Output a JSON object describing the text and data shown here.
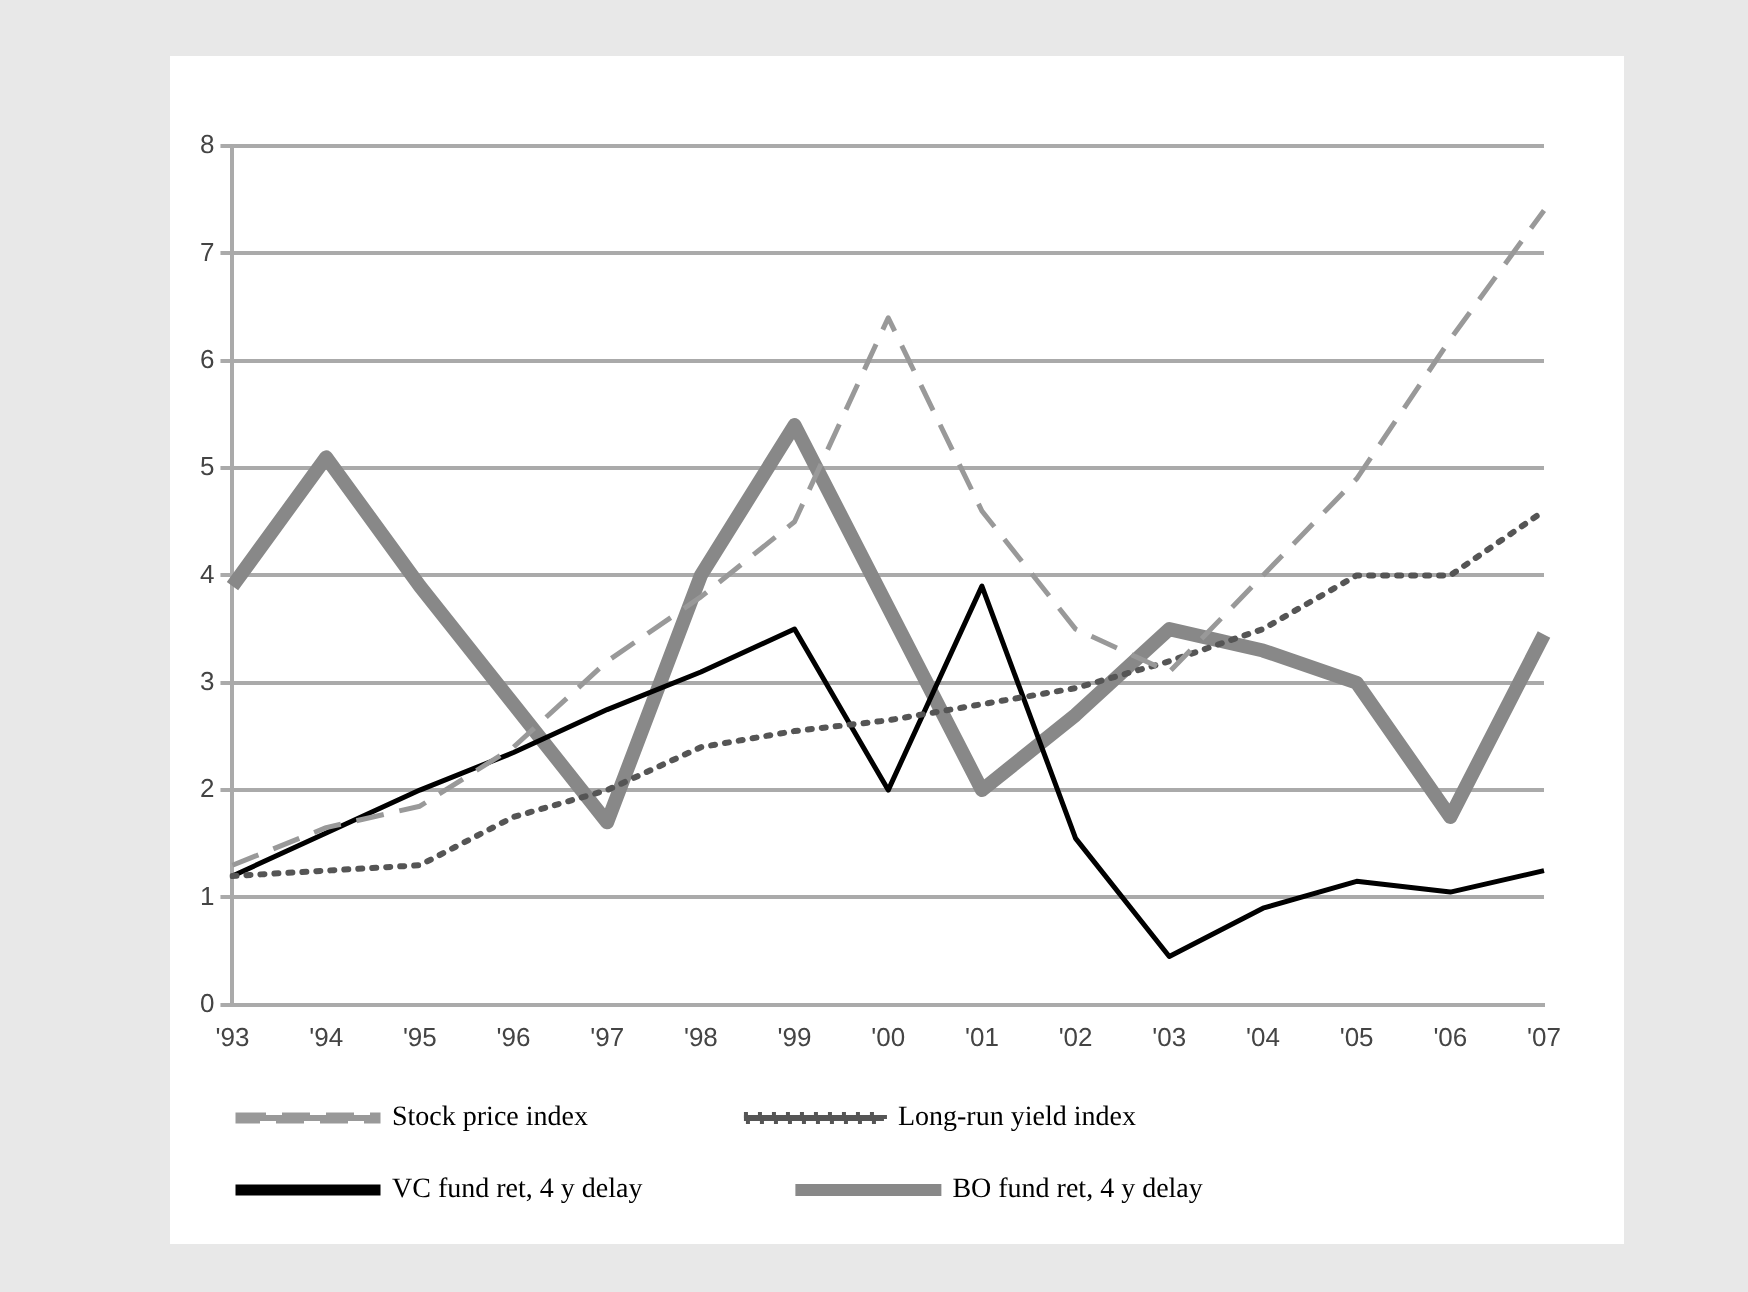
{
  "chart_data": {
    "type": "line",
    "categories": [
      "'93",
      "'94",
      "'95",
      "'96",
      "'97",
      "'98",
      "'99",
      "'00",
      "'01",
      "'02",
      "'03",
      "'04",
      "'05",
      "'06",
      "'07"
    ],
    "ylim": [
      0,
      8
    ],
    "yticks": [
      0,
      1,
      2,
      3,
      4,
      5,
      6,
      7,
      8
    ],
    "grid": "y",
    "legend": "bottom",
    "marker": "none",
    "series": [
      {
        "name": "Stock price index",
        "color": "#999999",
        "line_style": "dashed",
        "values": [
          1.3,
          1.65,
          1.85,
          2.4,
          3.2,
          3.8,
          4.5,
          6.4,
          4.6,
          3.5,
          3.1,
          4.0,
          4.9,
          6.2,
          7.4
        ]
      },
      {
        "name": "Long-run yield index",
        "color": "#555555",
        "line_style": "dotted",
        "values": [
          1.2,
          1.25,
          1.3,
          1.75,
          2.0,
          2.4,
          2.55,
          2.65,
          2.8,
          2.95,
          3.2,
          3.5,
          4.0,
          4.0,
          4.6
        ]
      },
      {
        "name": "VC fund ret, 4 y delay",
        "color": "#000000",
        "line_style": "solid",
        "values": [
          1.2,
          1.6,
          2.0,
          2.35,
          2.75,
          3.1,
          3.5,
          2.0,
          3.9,
          1.55,
          0.45,
          0.9,
          1.15,
          1.05,
          1.25
        ]
      },
      {
        "name": "BO fund ret, 4 y delay",
        "color": "#888888",
        "line_style": "solid",
        "values": [
          3.9,
          5.1,
          3.9,
          2.8,
          1.7,
          4.0,
          5.4,
          3.7,
          2.0,
          2.7,
          3.5,
          3.3,
          3.0,
          1.75,
          3.45
        ]
      }
    ]
  }
}
